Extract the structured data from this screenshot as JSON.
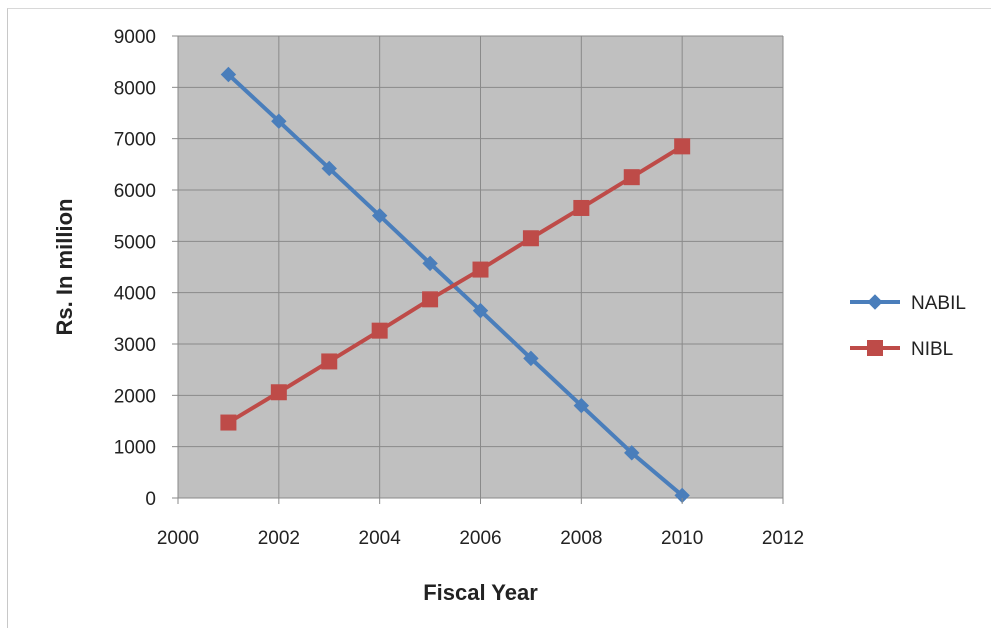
{
  "chart_data": {
    "type": "line",
    "title": "",
    "xlabel": "Fiscal Year",
    "ylabel": "Rs. In million",
    "xlim": [
      2000,
      2012
    ],
    "ylim": [
      0,
      9000
    ],
    "x_ticks": [
      2000,
      2002,
      2004,
      2006,
      2008,
      2010,
      2012
    ],
    "y_ticks": [
      0,
      1000,
      2000,
      3000,
      4000,
      5000,
      6000,
      7000,
      8000,
      9000
    ],
    "grid": true,
    "plot_background": "#c0c0c0",
    "legend_position": "right",
    "x": [
      2001,
      2002,
      2003,
      2004,
      2005,
      2006,
      2007,
      2008,
      2009,
      2010
    ],
    "series": [
      {
        "name": "NABIL",
        "color": "#4a7ebb",
        "marker": "diamond",
        "values": [
          8250,
          7340,
          6420,
          5500,
          4570,
          3650,
          2720,
          1800,
          880,
          50
        ]
      },
      {
        "name": "NIBL",
        "color": "#be4b48",
        "marker": "square",
        "values": [
          1470,
          2060,
          2660,
          3260,
          3870,
          4450,
          5060,
          5650,
          6250,
          6850
        ]
      }
    ]
  }
}
